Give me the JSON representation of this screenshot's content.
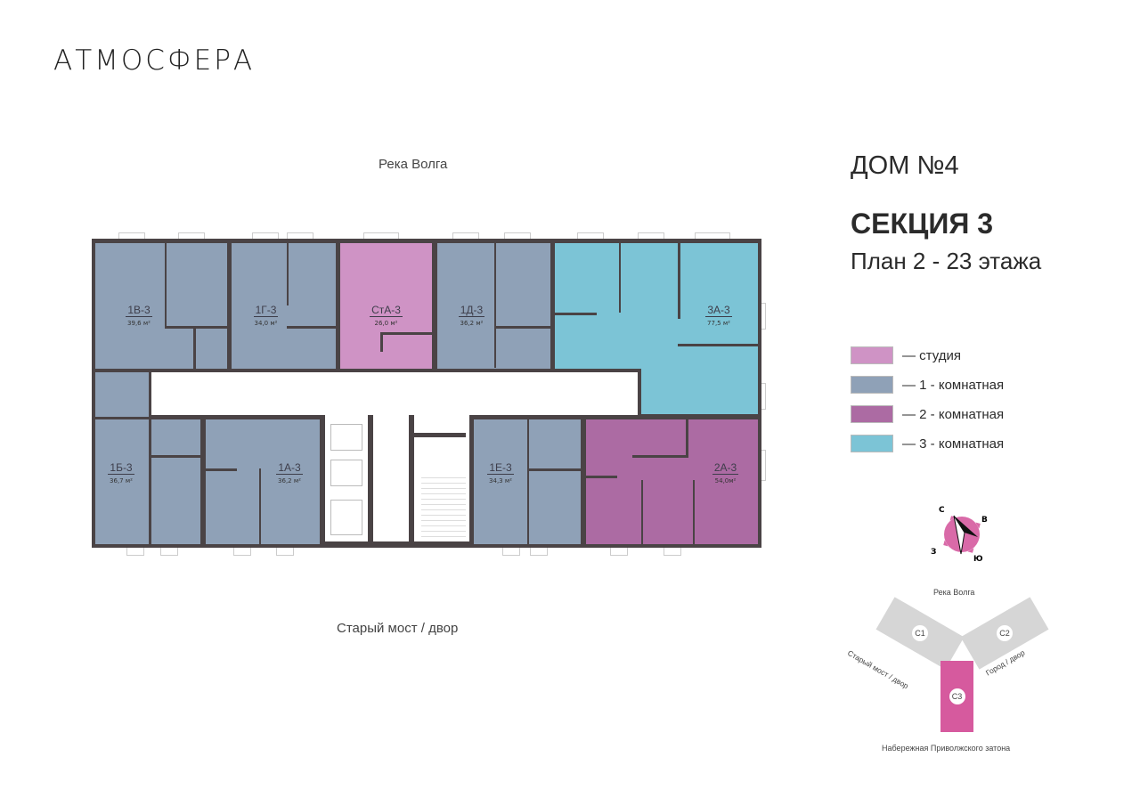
{
  "brand": {
    "logo": "АТМОСФЕРА"
  },
  "plan": {
    "top_direction": "Река Волга",
    "bottom_direction": "Старый мост / двор",
    "units": [
      {
        "id": "1В-3",
        "area": "39,6 м²",
        "type": "1"
      },
      {
        "id": "1Г-3",
        "area": "34,0 м²",
        "type": "1"
      },
      {
        "id": "СтА-3",
        "area": "26,0 м²",
        "type": "studio"
      },
      {
        "id": "1Д-3",
        "area": "36,2 м²",
        "type": "1"
      },
      {
        "id": "3А-3",
        "area": "77,5 м²",
        "type": "3"
      },
      {
        "id": "1Б-3",
        "area": "36,7 м²",
        "type": "1"
      },
      {
        "id": "1А-3",
        "area": "36,2 м²",
        "type": "1"
      },
      {
        "id": "1Е-3",
        "area": "34,3 м²",
        "type": "1"
      },
      {
        "id": "2А-3",
        "area": "54,0м²",
        "type": "2"
      }
    ]
  },
  "info": {
    "house": "ДОМ №4",
    "section": "СЕКЦИЯ 3",
    "floors": "План 2 - 23 этажа"
  },
  "legend": [
    {
      "label": "— студия",
      "color": "#cf93c5"
    },
    {
      "label": "— 1 - комнатная",
      "color": "#8fa1b7"
    },
    {
      "label": "— 2 - комнатная",
      "color": "#ac6ba3"
    },
    {
      "label": "— 3 - комнатная",
      "color": "#7cc4d6"
    }
  ],
  "compass": {
    "n": "С",
    "e": "В",
    "s": "Ю",
    "w": "З",
    "color": "#d96aa8"
  },
  "site_map": {
    "top": "Река Волга",
    "left": "Старый мост / двор",
    "right": "Город / двор",
    "bottom": "Набережная Приволжского затона",
    "sections": [
      "С1",
      "С2",
      "С3"
    ],
    "active_color": "#d65a9e",
    "inactive_color": "#d6d6d6"
  }
}
